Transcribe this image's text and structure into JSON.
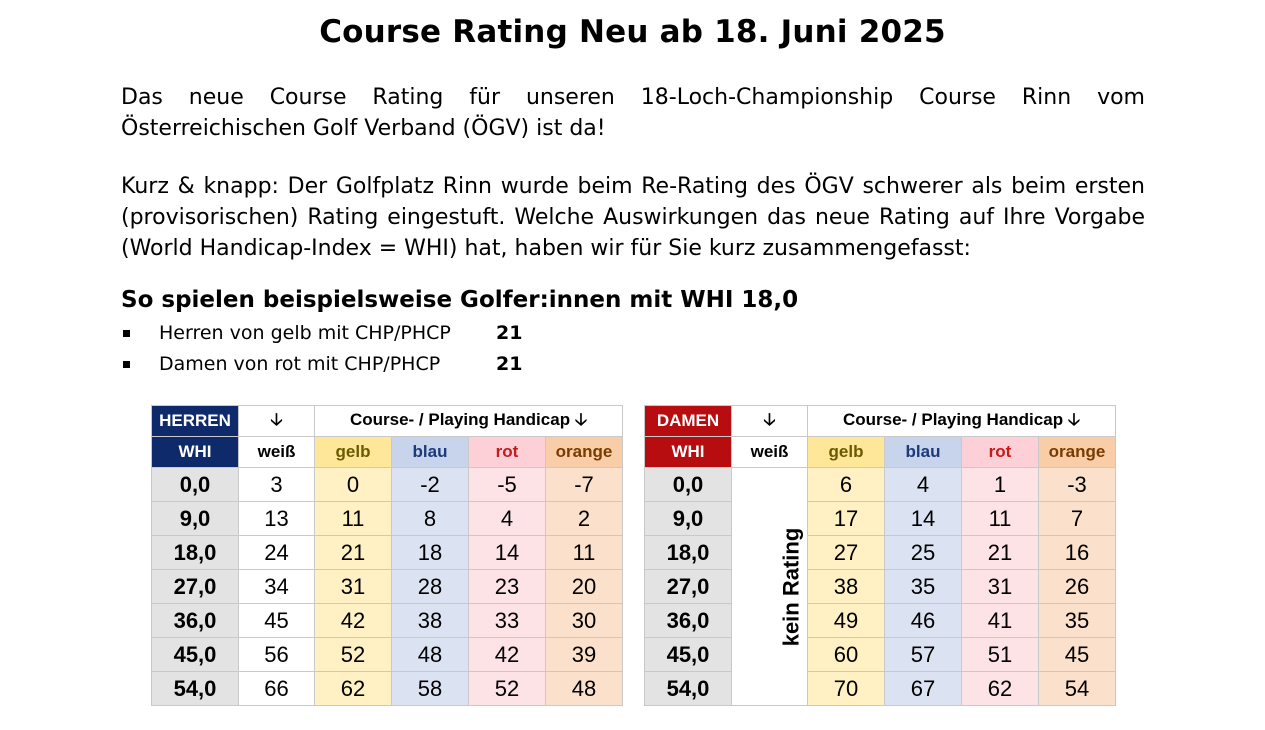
{
  "title": "Course Rating Neu ab 18. Juni 2025",
  "intro": {
    "line1": "Das neue Course Rating für unseren 18-Loch-Championship Course Rinn vom",
    "line2": "Österreichischen Golf Verband (ÖGV) ist da!"
  },
  "summary": "Kurz & knapp: Der Golfplatz Rinn wurde beim Re-Rating des ÖGV schwerer als beim ersten (provisorischen) Rating eingestuft. Welche Auswirkungen das neue Rating auf Ihre Vorgabe (World Handicap-Index = WHI) hat, haben wir für Sie kurz zusammengefasst:",
  "example": {
    "heading": "So spielen beispielsweise Golfer:innen mit WHI 18,0",
    "bullets": [
      {
        "text": "Herren von gelb mit CHP/PHCP",
        "value": "21"
      },
      {
        "text": "Damen von rot mit CHP/PHCP",
        "value": "21"
      }
    ]
  },
  "tables": {
    "arrow": "🡣",
    "header": "Course- / Playing Handicap",
    "whi_label": "WHI",
    "tees": [
      "weiß",
      "gelb",
      "blau",
      "rot",
      "orange"
    ],
    "colors": {
      "herren": "#0f2a6b",
      "damen": "#b80d10"
    },
    "herren": {
      "label": "HERREN",
      "rows": [
        {
          "whi": "0,0",
          "values": [
            "3",
            "0",
            "-2",
            "-5",
            "-7"
          ]
        },
        {
          "whi": "9,0",
          "values": [
            "13",
            "11",
            "8",
            "4",
            "2"
          ]
        },
        {
          "whi": "18,0",
          "values": [
            "24",
            "21",
            "18",
            "14",
            "11"
          ]
        },
        {
          "whi": "27,0",
          "values": [
            "34",
            "31",
            "28",
            "23",
            "20"
          ]
        },
        {
          "whi": "36,0",
          "values": [
            "45",
            "42",
            "38",
            "33",
            "30"
          ]
        },
        {
          "whi": "45,0",
          "values": [
            "56",
            "52",
            "48",
            "42",
            "39"
          ]
        },
        {
          "whi": "54,0",
          "values": [
            "66",
            "62",
            "58",
            "52",
            "48"
          ]
        }
      ]
    },
    "damen": {
      "label": "DAMEN",
      "no_rating": "kein Rating",
      "rows": [
        {
          "whi": "0,0",
          "values": [
            "6",
            "4",
            "1",
            "-3"
          ]
        },
        {
          "whi": "9,0",
          "values": [
            "17",
            "14",
            "11",
            "7"
          ]
        },
        {
          "whi": "18,0",
          "values": [
            "27",
            "25",
            "21",
            "16"
          ]
        },
        {
          "whi": "27,0",
          "values": [
            "38",
            "35",
            "31",
            "26"
          ]
        },
        {
          "whi": "36,0",
          "values": [
            "49",
            "46",
            "41",
            "35"
          ]
        },
        {
          "whi": "45,0",
          "values": [
            "60",
            "57",
            "51",
            "45"
          ]
        },
        {
          "whi": "54,0",
          "values": [
            "70",
            "67",
            "62",
            "54"
          ]
        }
      ]
    }
  }
}
